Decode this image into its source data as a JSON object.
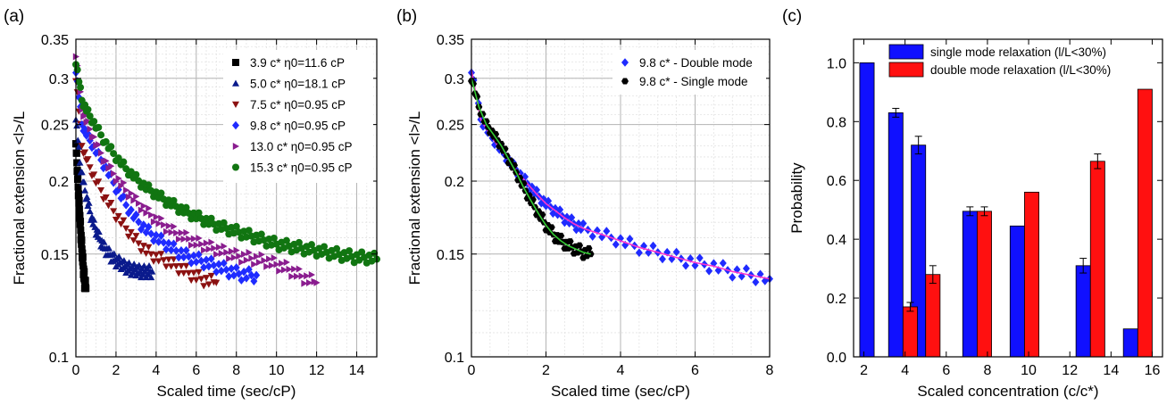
{
  "panel_labels": [
    "(a)",
    "(b)",
    "(c)"
  ],
  "chart_data": [
    {
      "type": "scatter",
      "panel": "(a)",
      "xlabel": "Scaled time (sec/cP)",
      "ylabel": "Fractional extension <l>/L",
      "xlim": [
        0,
        15
      ],
      "ylim": [
        0.1,
        0.35
      ],
      "yscale": "log",
      "xticks": [
        0,
        2,
        4,
        6,
        8,
        10,
        12,
        14
      ],
      "yticks": [
        0.1,
        0.15,
        0.2,
        0.25,
        0.3,
        0.35
      ],
      "ytick_labels": [
        "0.1",
        "0.15",
        "0.2",
        "0.25",
        "0.3",
        "0.35"
      ],
      "grid": true,
      "legend_position": "top-right",
      "series": [
        {
          "name": "3.9 c* η0=11.6 cP",
          "marker": "square",
          "color": "#000000",
          "x": [
            0,
            0.05,
            0.1,
            0.15,
            0.2,
            0.25,
            0.3,
            0.35,
            0.4,
            0.45,
            0.5
          ],
          "y": [
            0.235,
            0.215,
            0.199,
            0.185,
            0.173,
            0.162,
            0.153,
            0.145,
            0.138,
            0.133,
            0.131
          ]
        },
        {
          "name": "5.0 c* η0=18.1 cP",
          "marker": "triangle-up",
          "color": "#0a1a8c",
          "x": [
            0,
            0.2,
            0.4,
            0.6,
            0.8,
            1.0,
            1.2,
            1.4,
            1.6,
            1.8,
            2.0,
            2.2,
            2.4,
            2.6,
            2.8,
            3.0,
            3.2,
            3.4,
            3.6,
            3.8
          ],
          "y": [
            0.258,
            0.215,
            0.196,
            0.183,
            0.172,
            0.165,
            0.159,
            0.154,
            0.151,
            0.148,
            0.146,
            0.145,
            0.143,
            0.142,
            0.141,
            0.141,
            0.14,
            0.14,
            0.14,
            0.14
          ]
        },
        {
          "name": "7.5 c* η0=0.95 cP",
          "marker": "triangle-down",
          "color": "#8b1111",
          "x": [
            0,
            0.3,
            0.6,
            1.0,
            1.5,
            2.0,
            2.5,
            3.0,
            3.5,
            4.0,
            4.5,
            5.0,
            5.5,
            6.0,
            6.5,
            7.0
          ],
          "y": [
            0.3,
            0.23,
            0.215,
            0.2,
            0.186,
            0.175,
            0.166,
            0.158,
            0.152,
            0.148,
            0.146,
            0.143,
            0.14,
            0.137,
            0.135,
            0.134
          ]
        },
        {
          "name": "9.8 c* η0=0.95 cP",
          "marker": "diamond",
          "color": "#1f2bff",
          "x": [
            0,
            0.3,
            0.6,
            1.0,
            1.5,
            2.0,
            2.5,
            3.0,
            3.5,
            4.0,
            4.5,
            5.0,
            5.5,
            6.0,
            6.5,
            7.0,
            7.5,
            8.0,
            8.5,
            9.0
          ],
          "y": [
            0.31,
            0.25,
            0.238,
            0.225,
            0.21,
            0.195,
            0.182,
            0.172,
            0.165,
            0.16,
            0.156,
            0.152,
            0.149,
            0.147,
            0.145,
            0.143,
            0.141,
            0.139,
            0.138,
            0.138
          ]
        },
        {
          "name": "13.0 c* η0=0.95 cP",
          "marker": "triangle-right",
          "color": "#8a1d8f",
          "x": [
            0,
            0.3,
            0.6,
            1.0,
            1.5,
            2.0,
            2.5,
            3.0,
            3.5,
            4.0,
            4.5,
            5.0,
            5.5,
            6.0,
            6.5,
            7.0,
            7.5,
            8.0,
            8.5,
            9.0,
            9.5,
            10.0,
            10.5,
            11.0,
            11.5,
            12.0
          ],
          "y": [
            0.33,
            0.265,
            0.25,
            0.232,
            0.215,
            0.203,
            0.193,
            0.185,
            0.178,
            0.172,
            0.167,
            0.163,
            0.16,
            0.157,
            0.155,
            0.153,
            0.151,
            0.149,
            0.148,
            0.147,
            0.146,
            0.144,
            0.142,
            0.139,
            0.136,
            0.134
          ]
        },
        {
          "name": "15.3 c* η0=0.95 cP",
          "marker": "circle",
          "color": "#117511",
          "x": [
            0,
            0.3,
            0.6,
            1.0,
            1.5,
            2.0,
            2.5,
            3.0,
            3.5,
            4.0,
            4.5,
            5.0,
            5.5,
            6.0,
            6.5,
            7.0,
            7.5,
            8.0,
            8.5,
            9.0,
            9.5,
            10.0,
            10.5,
            11.0,
            11.5,
            12.0,
            12.5,
            13.0,
            13.5,
            14.0,
            14.5,
            15.0
          ],
          "y": [
            0.32,
            0.275,
            0.262,
            0.248,
            0.232,
            0.22,
            0.21,
            0.202,
            0.195,
            0.19,
            0.185,
            0.181,
            0.177,
            0.174,
            0.171,
            0.168,
            0.166,
            0.164,
            0.162,
            0.16,
            0.158,
            0.156,
            0.155,
            0.154,
            0.153,
            0.152,
            0.151,
            0.15,
            0.149,
            0.148,
            0.148,
            0.147
          ]
        }
      ]
    },
    {
      "type": "scatter",
      "panel": "(b)",
      "xlabel": "Scaled time (sec/cP)",
      "ylabel": "Fractional extension <l>/L",
      "xlim": [
        0,
        8
      ],
      "ylim": [
        0.1,
        0.35
      ],
      "yscale": "log",
      "xticks": [
        0,
        2,
        4,
        6,
        8
      ],
      "yticks": [
        0.1,
        0.15,
        0.2,
        0.25,
        0.3,
        0.35
      ],
      "ytick_labels": [
        "0.1",
        "0.15",
        "0.2",
        "0.25",
        "0.3",
        "0.35"
      ],
      "grid": true,
      "legend_position": "top-right",
      "series": [
        {
          "name": "9.8 c* - Double mode",
          "marker": "diamond",
          "color": "#1f2bff",
          "fit_color": "#ff33cc",
          "x": [
            0,
            0.25,
            0.5,
            0.75,
            1.0,
            1.25,
            1.5,
            1.75,
            2.0,
            2.25,
            2.5,
            2.75,
            3.0,
            3.5,
            4.0,
            4.5,
            5.0,
            5.5,
            6.0,
            6.5,
            7.0,
            7.5,
            8.0
          ],
          "y": [
            0.31,
            0.255,
            0.24,
            0.228,
            0.217,
            0.207,
            0.198,
            0.19,
            0.183,
            0.178,
            0.173,
            0.169,
            0.166,
            0.162,
            0.158,
            0.154,
            0.151,
            0.148,
            0.145,
            0.143,
            0.14,
            0.138,
            0.136
          ]
        },
        {
          "name": "9.8 c* - Single mode",
          "marker": "hexagon",
          "color": "#000000",
          "fit_color": "#33cc33",
          "x": [
            0,
            0.2,
            0.4,
            0.6,
            0.8,
            1.0,
            1.2,
            1.4,
            1.6,
            1.8,
            2.0,
            2.2,
            2.4,
            2.6,
            2.8,
            3.0,
            3.2
          ],
          "y": [
            0.3,
            0.268,
            0.25,
            0.24,
            0.23,
            0.218,
            0.207,
            0.195,
            0.185,
            0.176,
            0.168,
            0.162,
            0.158,
            0.155,
            0.153,
            0.151,
            0.15
          ]
        }
      ]
    },
    {
      "type": "bar",
      "panel": "(c)",
      "xlabel": "Scaled concentration (c/c*)",
      "ylabel": "Probability",
      "xlim": [
        1.5,
        16.5
      ],
      "ylim": [
        0,
        1.08
      ],
      "xticks": [
        2,
        4,
        6,
        8,
        10,
        12,
        14,
        16
      ],
      "yticks": [
        0.0,
        0.2,
        0.4,
        0.6,
        0.8,
        1.0
      ],
      "ytick_labels": [
        "0.0",
        "0.2",
        "0.4",
        "0.6",
        "0.8",
        "1.0"
      ],
      "grid": false,
      "legend_position": "top",
      "series": [
        {
          "name": "single mode relaxation (l/L<30%)",
          "color": "#1010ff",
          "x": [
            2.5,
            3.9,
            5.0,
            7.5,
            9.8,
            13.0,
            15.3
          ],
          "values": [
            1.0,
            0.83,
            0.72,
            0.495,
            0.445,
            0.31,
            0.095
          ],
          "errors": [
            0,
            0.015,
            0.03,
            0.015,
            0,
            0.025,
            0
          ]
        },
        {
          "name": "double mode relaxation (l/L<30%)",
          "color": "#ff1010",
          "x": [
            2.5,
            3.9,
            5.0,
            7.5,
            9.8,
            13.0,
            15.3
          ],
          "values": [
            0,
            0.17,
            0.28,
            0.495,
            0.56,
            0.665,
            0.91
          ],
          "errors": [
            0,
            0.015,
            0.03,
            0.015,
            0,
            0.025,
            0
          ]
        }
      ]
    }
  ]
}
